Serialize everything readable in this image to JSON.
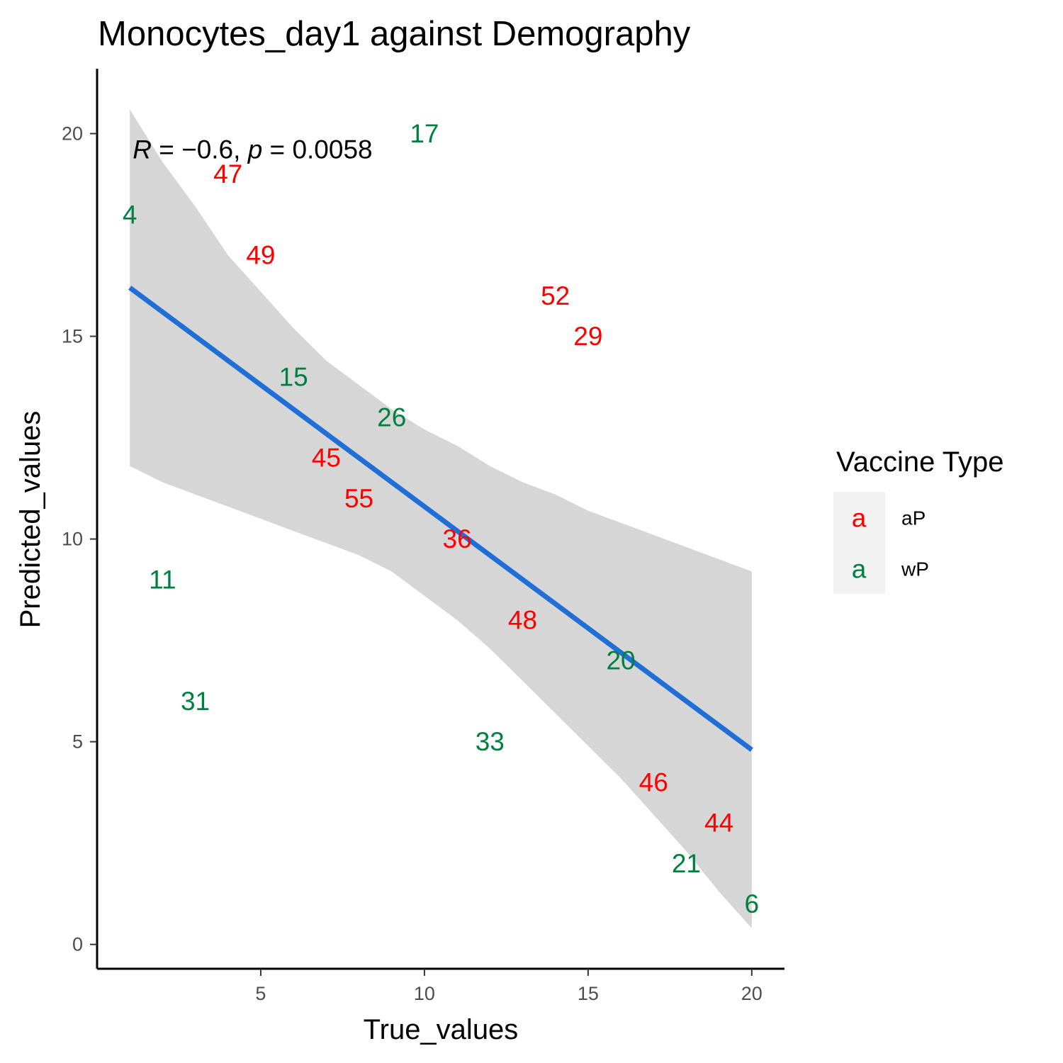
{
  "chart_data": {
    "type": "scatter",
    "title": "Monocytes_day1 against Demography",
    "xlabel": "True_values",
    "ylabel": "Predicted_values",
    "xlim": [
      0,
      21
    ],
    "ylim": [
      -0.6,
      21.6
    ],
    "xticks": [
      5,
      10,
      15,
      20
    ],
    "yticks": [
      0,
      5,
      10,
      15,
      20
    ],
    "grid": false,
    "point_glyph": "text labels",
    "groups": {
      "aP": "#ff0000",
      "wP": "#008040"
    },
    "points": [
      {
        "label": "47",
        "x": 4,
        "y": 19,
        "group": "aP"
      },
      {
        "label": "49",
        "x": 5,
        "y": 17,
        "group": "aP"
      },
      {
        "label": "52",
        "x": 14,
        "y": 16,
        "group": "aP"
      },
      {
        "label": "29",
        "x": 15,
        "y": 15,
        "group": "aP"
      },
      {
        "label": "45",
        "x": 7,
        "y": 12,
        "group": "aP"
      },
      {
        "label": "55",
        "x": 8,
        "y": 11,
        "group": "aP"
      },
      {
        "label": "36",
        "x": 11,
        "y": 10,
        "group": "aP"
      },
      {
        "label": "48",
        "x": 13,
        "y": 8,
        "group": "aP"
      },
      {
        "label": "46",
        "x": 17,
        "y": 4,
        "group": "aP"
      },
      {
        "label": "44",
        "x": 19,
        "y": 3,
        "group": "aP"
      },
      {
        "label": "17",
        "x": 10,
        "y": 20,
        "group": "wP"
      },
      {
        "label": "4",
        "x": 1,
        "y": 18,
        "group": "wP"
      },
      {
        "label": "15",
        "x": 6,
        "y": 14,
        "group": "wP"
      },
      {
        "label": "26",
        "x": 9,
        "y": 13,
        "group": "wP"
      },
      {
        "label": "11",
        "x": 2,
        "y": 9,
        "group": "wP"
      },
      {
        "label": "20",
        "x": 16,
        "y": 7,
        "group": "wP"
      },
      {
        "label": "31",
        "x": 3,
        "y": 6,
        "group": "wP"
      },
      {
        "label": "33",
        "x": 12,
        "y": 5,
        "group": "wP"
      },
      {
        "label": "21",
        "x": 18,
        "y": 2,
        "group": "wP"
      },
      {
        "label": "6",
        "x": 20,
        "y": 1,
        "group": "wP"
      }
    ],
    "regression": {
      "x": [
        1,
        20
      ],
      "y": [
        16.2,
        4.8
      ],
      "color": "#1f6fd6",
      "ci_color": "#d6d6d6",
      "ci_upper": [
        [
          1,
          20.6
        ],
        [
          2,
          19.3
        ],
        [
          3,
          18.2
        ],
        [
          4,
          17.0
        ],
        [
          5,
          16.1
        ],
        [
          6,
          15.2
        ],
        [
          7,
          14.4
        ],
        [
          8,
          13.8
        ],
        [
          9,
          13.2
        ],
        [
          10,
          12.7
        ],
        [
          11,
          12.3
        ],
        [
          12,
          11.8
        ],
        [
          13,
          11.4
        ],
        [
          14,
          11.1
        ],
        [
          15,
          10.7
        ],
        [
          16,
          10.4
        ],
        [
          17,
          10.1
        ],
        [
          18,
          9.8
        ],
        [
          19,
          9.5
        ],
        [
          20,
          9.2
        ]
      ],
      "ci_lower": [
        [
          1,
          11.8
        ],
        [
          2,
          11.4
        ],
        [
          3,
          11.1
        ],
        [
          4,
          10.8
        ],
        [
          5,
          10.5
        ],
        [
          6,
          10.2
        ],
        [
          7,
          9.9
        ],
        [
          8,
          9.6
        ],
        [
          9,
          9.2
        ],
        [
          10,
          8.6
        ],
        [
          11,
          8.0
        ],
        [
          12,
          7.3
        ],
        [
          13,
          6.5
        ],
        [
          14,
          5.7
        ],
        [
          15,
          4.9
        ],
        [
          16,
          4.1
        ],
        [
          17,
          3.2
        ],
        [
          18,
          2.3
        ],
        [
          19,
          1.3
        ],
        [
          20,
          0.4
        ]
      ]
    },
    "annotation": {
      "r_symbol": "R",
      "r_text": " = −0.6, ",
      "p_symbol": "p",
      "p_text": " = 0.0058",
      "x": 1,
      "y": 19.6
    },
    "legend": {
      "title": "Vaccine Type",
      "position": "right",
      "key_glyph": "a",
      "entries": [
        {
          "label": "aP",
          "color": "#ff0000"
        },
        {
          "label": "wP",
          "color": "#008040"
        }
      ]
    }
  }
}
